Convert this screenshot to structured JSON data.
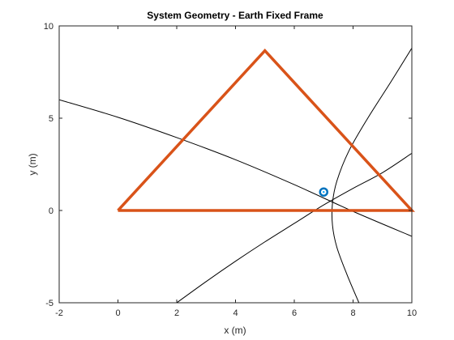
{
  "chart_data": {
    "type": "line",
    "title": "System Geometry - Earth Fixed Frame",
    "xlabel": "x (m)",
    "ylabel": "y (m)",
    "xlim": [
      -2,
      10
    ],
    "ylim": [
      -5,
      10
    ],
    "xticks": [
      -2,
      0,
      2,
      4,
      6,
      8,
      10
    ],
    "yticks": [
      -5,
      0,
      5,
      10
    ],
    "grid": false,
    "legend": "none",
    "colors": {
      "triangle": "#D95319",
      "curves": "#000000",
      "target": "#0072BD",
      "axes": "#262626"
    },
    "series": [
      {
        "kind": "polygon",
        "x": [
          0,
          5,
          10,
          0
        ],
        "y": [
          0,
          8.66,
          0,
          0
        ]
      },
      {
        "kind": "curve",
        "x": [
          -2,
          0,
          2,
          4,
          6,
          8,
          10
        ],
        "y": [
          6.0,
          5.05,
          3.95,
          2.75,
          1.4,
          -0.05,
          -1.4
        ]
      },
      {
        "kind": "curve",
        "x": [
          2,
          3,
          4,
          5,
          6,
          7,
          8,
          9,
          10
        ],
        "y": [
          -5.0,
          -3.85,
          -2.75,
          -1.7,
          -0.7,
          0.3,
          1.2,
          2.05,
          3.1
        ]
      },
      {
        "kind": "curve",
        "x": [
          8.2,
          7.8,
          7.45,
          7.3,
          7.3,
          7.45,
          7.85,
          8.5,
          9.3,
          10.0
        ],
        "y": [
          -5.0,
          -3.5,
          -2.0,
          -0.8,
          0.4,
          1.6,
          3.2,
          5.0,
          7.0,
          8.8
        ]
      },
      {
        "kind": "marker",
        "x": [
          7.0
        ],
        "y": [
          1.0
        ]
      }
    ]
  }
}
